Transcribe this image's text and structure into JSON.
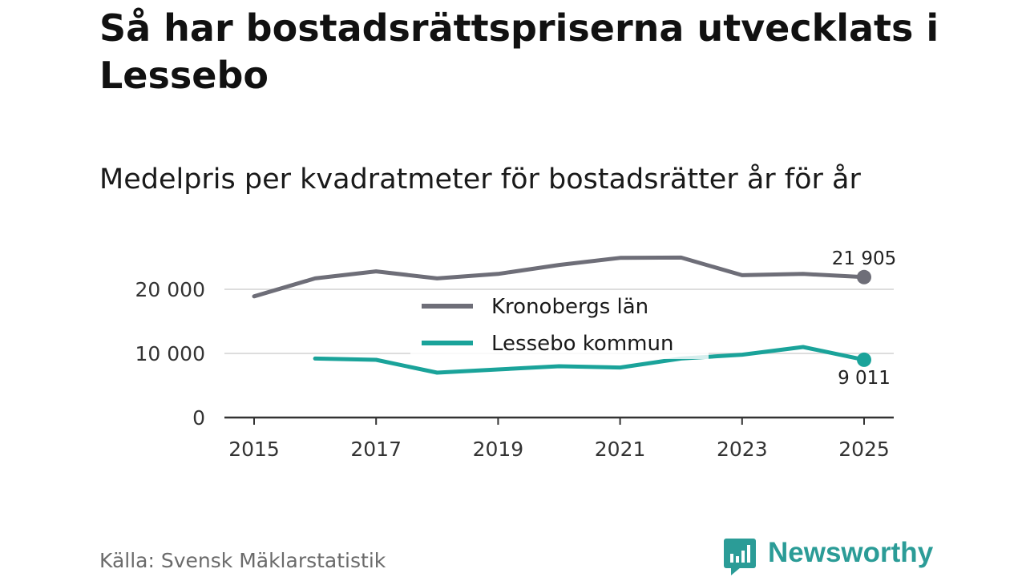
{
  "title": "Så har bostadsrättspriserna utvecklats i Lessebo",
  "subtitle": "Medelpris per kvadratmeter för bostadsrätter år för år",
  "source": "Källa: Svensk Mäklarstatistik",
  "brand": {
    "name": "Newsworthy",
    "icon": "newsworthy-logo-icon"
  },
  "colors": {
    "kronoberg": "#6e6e78",
    "lessebo": "#1aa39a",
    "grid": "#dddddd",
    "axis": "#333333",
    "brand": "#2b9c97"
  },
  "chart_data": {
    "type": "line",
    "title": "Medelpris per kvadratmeter för bostadsrätter år för år",
    "xlabel": "",
    "ylabel": "",
    "xlim": [
      2014.5,
      2025.5
    ],
    "ylim": [
      0,
      26000
    ],
    "y_ticks": [
      0,
      10000,
      20000
    ],
    "y_tick_labels": [
      "0",
      "10 000",
      "20 000"
    ],
    "x_ticks": [
      2015,
      2017,
      2019,
      2021,
      2023,
      2025
    ],
    "x_tick_labels": [
      "2015",
      "2017",
      "2019",
      "2021",
      "2023",
      "2025"
    ],
    "grid": true,
    "legend_position": "center",
    "series": [
      {
        "name": "Kronobergs län",
        "color": "#6e6e78",
        "x": [
          2015,
          2016,
          2017,
          2018,
          2019,
          2020,
          2021,
          2022,
          2023,
          2024,
          2025
        ],
        "values": [
          18900,
          21700,
          22800,
          21700,
          22400,
          23800,
          24900,
          24950,
          22200,
          22400,
          21905
        ],
        "end_label": "21 905"
      },
      {
        "name": "Lessebo kommun",
        "color": "#1aa39a",
        "x": [
          2016,
          2017,
          2018,
          2019,
          2020,
          2021,
          2022,
          2023,
          2024,
          2025
        ],
        "values": [
          9200,
          9000,
          7000,
          7500,
          8000,
          7800,
          9200,
          9800,
          11000,
          9011
        ],
        "end_label": "9 011"
      }
    ]
  }
}
